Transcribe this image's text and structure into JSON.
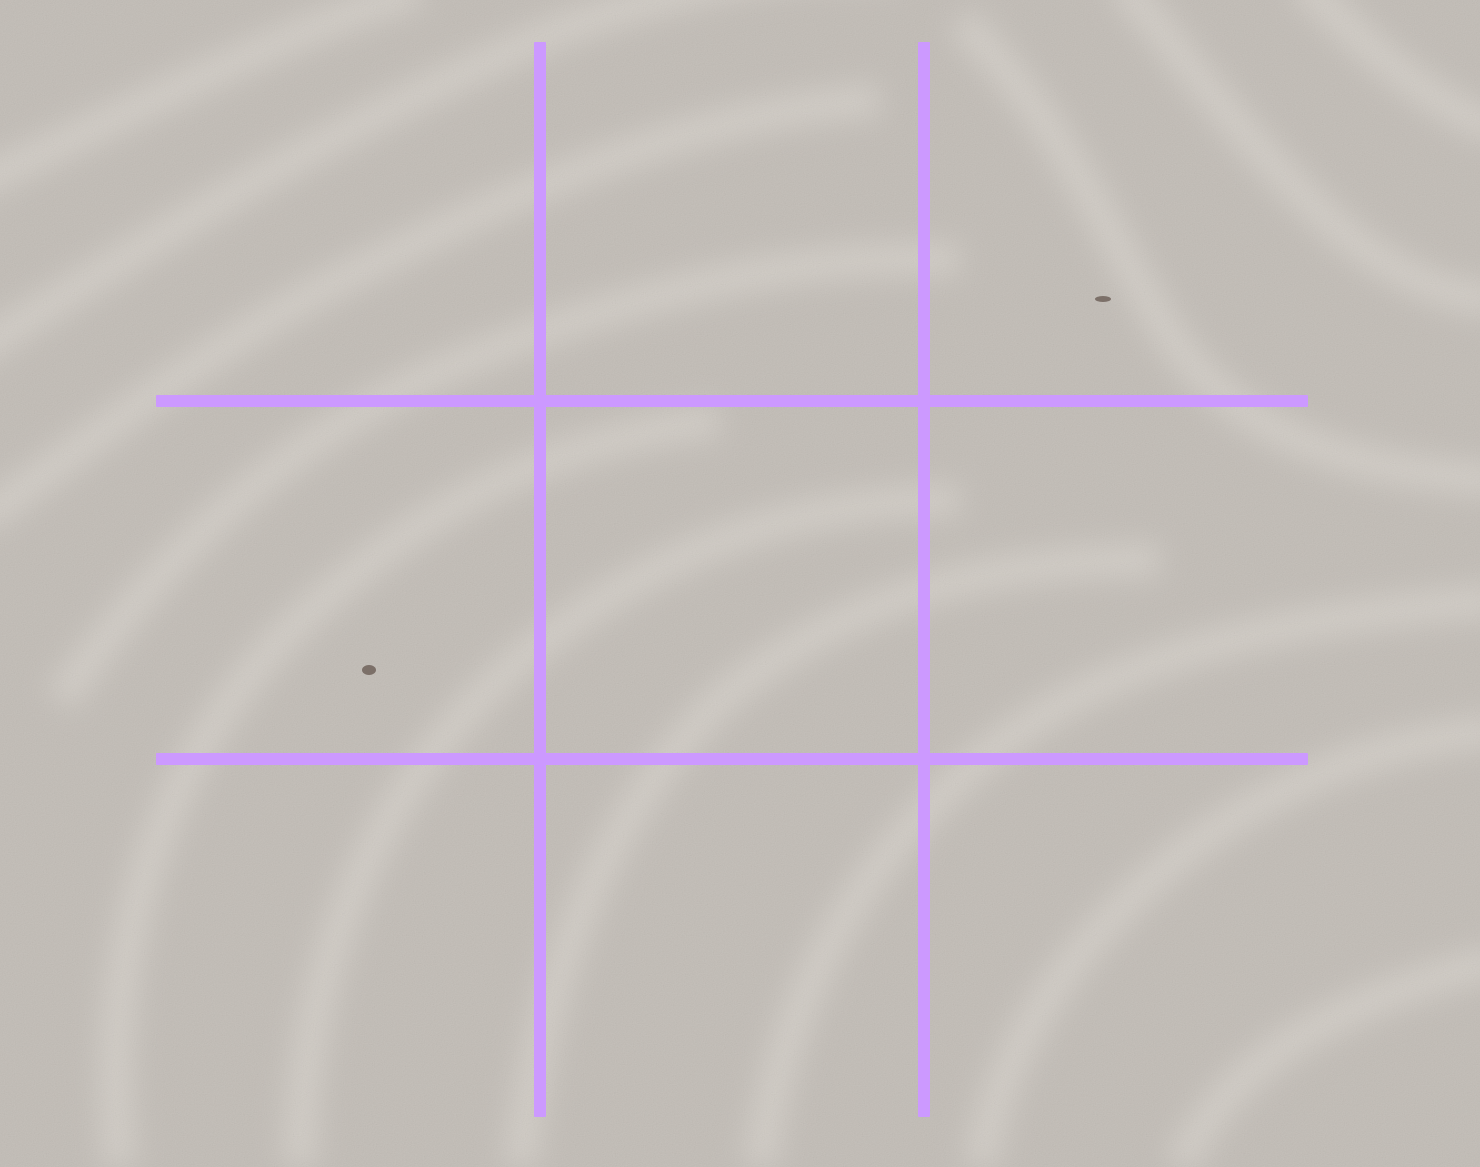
{
  "background": {
    "texture": "rippled-sand",
    "base_color": "#c3beb8",
    "ripple_color": "#e9e5df"
  },
  "board": {
    "line_color": "#cc99ff",
    "rows": 3,
    "columns": 3,
    "cells": [
      [
        "",
        "",
        ""
      ],
      [
        "",
        "",
        ""
      ],
      [
        "",
        "",
        ""
      ]
    ]
  }
}
